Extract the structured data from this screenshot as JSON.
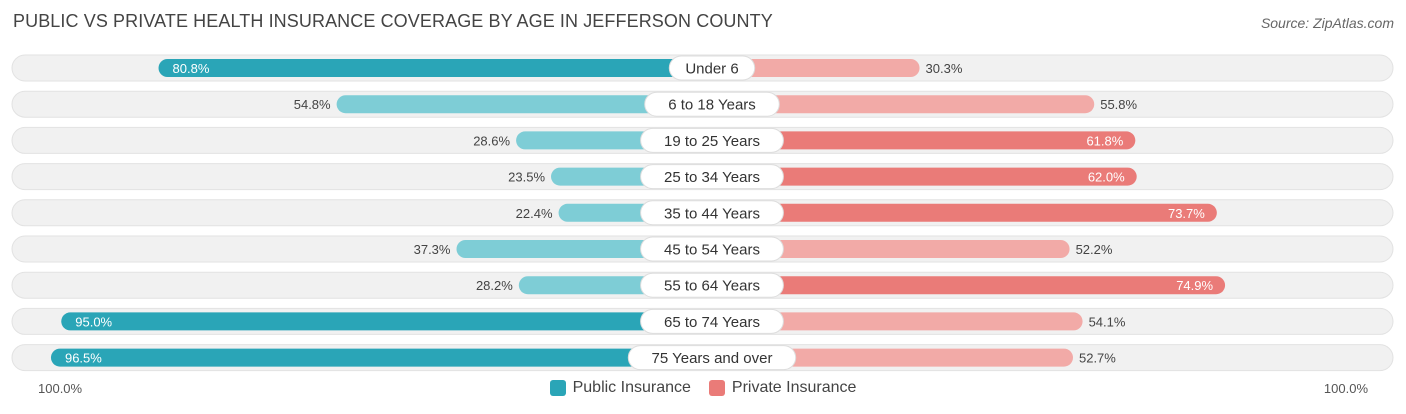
{
  "header": {
    "title": "PUBLIC VS PRIVATE HEALTH INSURANCE COVERAGE BY AGE IN JEFFERSON COUNTY",
    "source": "Source: ZipAtlas.com"
  },
  "colors": {
    "public": "#2aa5b7",
    "private": "#ea7b78",
    "public_light": "#7ecdd6",
    "private_light": "#f2aaa7",
    "track": "#f1f1f1"
  },
  "axis": {
    "left_label": "100.0%",
    "right_label": "100.0%"
  },
  "chart_data": {
    "type": "bar",
    "orientation": "horizontal-diverging",
    "title": "PUBLIC VS PRIVATE HEALTH INSURANCE COVERAGE BY AGE IN JEFFERSON COUNTY",
    "categories": [
      "Under 6",
      "6 to 18 Years",
      "19 to 25 Years",
      "25 to 34 Years",
      "35 to 44 Years",
      "45 to 54 Years",
      "55 to 64 Years",
      "65 to 74 Years",
      "75 Years and over"
    ],
    "series": [
      {
        "name": "Public Insurance",
        "values": [
          80.8,
          54.8,
          28.6,
          23.5,
          22.4,
          37.3,
          28.2,
          95.0,
          96.5
        ],
        "labels": [
          "80.8%",
          "54.8%",
          "28.6%",
          "23.5%",
          "22.4%",
          "37.3%",
          "28.2%",
          "95.0%",
          "96.5%"
        ]
      },
      {
        "name": "Private Insurance",
        "values": [
          30.3,
          55.8,
          61.8,
          62.0,
          73.7,
          52.2,
          74.9,
          54.1,
          52.7
        ],
        "labels": [
          "30.3%",
          "55.8%",
          "61.8%",
          "62.0%",
          "73.7%",
          "52.2%",
          "74.9%",
          "54.1%",
          "52.7%"
        ]
      }
    ],
    "xlim": [
      0,
      100
    ],
    "legend": "bottom-center"
  }
}
